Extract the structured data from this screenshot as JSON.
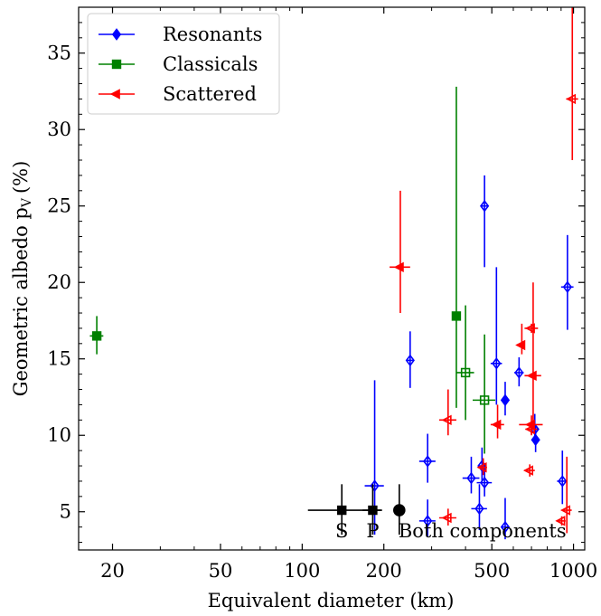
{
  "chart_data": {
    "type": "scatter",
    "xlabel": "Equivalent diameter (km)",
    "ylabel_main": "Geometric albedo p",
    "ylabel_sub": "V",
    "ylabel_unit": "(%)",
    "xscale": "log",
    "xlim": [
      15,
      1100
    ],
    "ylim": [
      2.5,
      38
    ],
    "x_ticks": [
      {
        "value": 20,
        "label": "20"
      },
      {
        "value": 50,
        "label": "50"
      },
      {
        "value": 100,
        "label": "100"
      },
      {
        "value": 200,
        "label": "200"
      },
      {
        "value": 500,
        "label": "500"
      },
      {
        "value": 1000,
        "label": "1000"
      }
    ],
    "y_ticks": [
      {
        "value": 5,
        "label": "5"
      },
      {
        "value": 10,
        "label": "10"
      },
      {
        "value": 15,
        "label": "15"
      },
      {
        "value": 20,
        "label": "20"
      },
      {
        "value": 25,
        "label": "25"
      },
      {
        "value": 30,
        "label": "30"
      },
      {
        "value": 35,
        "label": "35"
      }
    ],
    "legend": {
      "position": "top-left",
      "entries": [
        "Resonants",
        "Classicals",
        "Scattered"
      ]
    },
    "series": [
      {
        "name": "Resonants",
        "color": "#0000ff",
        "marker": "diamond",
        "points": [
          {
            "x": 250,
            "y": 14.9,
            "xerr": [
              6,
              6
            ],
            "yerr": [
              1.8,
              1.9
            ],
            "filled": false
          },
          {
            "x": 185,
            "y": 6.7,
            "xerr": [
              15,
              15
            ],
            "yerr": [
              3.2,
              6.9
            ],
            "filled": false
          },
          {
            "x": 290,
            "y": 8.3,
            "xerr": [
              20,
              20
            ],
            "yerr": [
              1.4,
              1.8
            ],
            "filled": false
          },
          {
            "x": 290,
            "y": 4.4,
            "xerr": [
              20,
              20
            ],
            "yerr": [
              1.0,
              1.4
            ],
            "filled": false
          },
          {
            "x": 420,
            "y": 7.2,
            "xerr": [
              30,
              30
            ],
            "yerr": [
              1.0,
              1.4
            ],
            "filled": false
          },
          {
            "x": 470,
            "y": 6.9,
            "xerr": [
              30,
              30
            ],
            "yerr": [
              0.9,
              1.2
            ],
            "filled": false
          },
          {
            "x": 450,
            "y": 5.2,
            "xerr": [
              30,
              30
            ],
            "yerr": [
              1.4,
              1.6
            ],
            "filled": false
          },
          {
            "x": 460,
            "y": 8.0,
            "xerr": [
              15,
              15
            ],
            "yerr": [
              1.0,
              1.2
            ],
            "filled": false
          },
          {
            "x": 470,
            "y": 25.0,
            "xerr": [
              12,
              12
            ],
            "yerr": [
              4.0,
              2.0
            ],
            "filled": false
          },
          {
            "x": 520,
            "y": 14.7,
            "xerr": [
              25,
              25
            ],
            "yerr": [
              2.7,
              6.3
            ],
            "filled": false
          },
          {
            "x": 560,
            "y": 12.3,
            "xerr": [
              15,
              15
            ],
            "yerr": [
              1.0,
              1.2
            ],
            "filled": true
          },
          {
            "x": 560,
            "y": 4.0,
            "xerr": [
              20,
              20
            ],
            "yerr": [
              0.8,
              1.9
            ],
            "filled": false
          },
          {
            "x": 630,
            "y": 14.1,
            "xerr": [
              25,
              25
            ],
            "yerr": [
              0.9,
              1.0
            ],
            "filled": false
          },
          {
            "x": 720,
            "y": 10.4,
            "xerr": [
              25,
              25
            ],
            "yerr": [
              1.0,
              1.0
            ],
            "filled": false
          },
          {
            "x": 725,
            "y": 9.7,
            "xerr": [
              15,
              15
            ],
            "yerr": [
              0.8,
              0.9
            ],
            "filled": true
          },
          {
            "x": 910,
            "y": 7.0,
            "xerr": [
              40,
              40
            ],
            "yerr": [
              1.5,
              2.0
            ],
            "filled": false
          },
          {
            "x": 950,
            "y": 19.7,
            "xerr": [
              50,
              50
            ],
            "yerr": [
              2.8,
              3.4
            ],
            "filled": false
          }
        ]
      },
      {
        "name": "Classicals",
        "color": "#008000",
        "marker": "square",
        "points": [
          {
            "x": 17.5,
            "y": 16.5,
            "xerr": [
              1.0,
              1.0
            ],
            "yerr": [
              1.2,
              1.3
            ],
            "filled": true
          },
          {
            "x": 370,
            "y": 17.8,
            "xerr": [
              12,
              12
            ],
            "yerr": [
              6.0,
              15.0
            ],
            "filled": true
          },
          {
            "x": 400,
            "y": 14.1,
            "xerr": [
              30,
              30
            ],
            "yerr": [
              3.1,
              4.4
            ],
            "filled": false
          },
          {
            "x": 470,
            "y": 12.3,
            "xerr": [
              45,
              45
            ],
            "yerr": [
              3.5,
              4.3
            ],
            "filled": false
          }
        ]
      },
      {
        "name": "Scattered",
        "color": "#ff0000",
        "marker": "triangle-left",
        "points": [
          {
            "x": 230,
            "y": 21.0,
            "xerr": [
              20,
              20
            ],
            "yerr": [
              3.0,
              5.0
            ],
            "filled": true
          },
          {
            "x": 345,
            "y": 11.0,
            "xerr": [
              25,
              25
            ],
            "yerr": [
              1.0,
              2.0
            ],
            "filled": false
          },
          {
            "x": 345,
            "y": 4.6,
            "xerr": [
              25,
              25
            ],
            "yerr": [
              0.5,
              0.6
            ],
            "filled": false
          },
          {
            "x": 465,
            "y": 7.9,
            "xerr": [
              15,
              15
            ],
            "yerr": [
              0.5,
              0.6
            ],
            "filled": false
          },
          {
            "x": 525,
            "y": 10.7,
            "xerr": [
              30,
              30
            ],
            "yerr": [
              0.9,
              1.3
            ],
            "filled": true
          },
          {
            "x": 645,
            "y": 15.9,
            "xerr": [
              15,
              15
            ],
            "yerr": [
              0.6,
              1.4
            ],
            "filled": true
          },
          {
            "x": 700,
            "y": 17.0,
            "xerr": [
              40,
              40
            ],
            "yerr": [
              0.3,
              0.3
            ],
            "filled": false
          },
          {
            "x": 710,
            "y": 13.9,
            "xerr": [
              50,
              50
            ],
            "yerr": [
              3.3,
              6.1
            ],
            "filled": true
          },
          {
            "x": 700,
            "y": 10.7,
            "xerr": [
              70,
              70
            ],
            "yerr": [
              0.6,
              0.6
            ],
            "filled": true
          },
          {
            "x": 700,
            "y": 10.4,
            "xerr": [
              35,
              35
            ],
            "yerr": [
              0.4,
              0.4
            ],
            "filled": false
          },
          {
            "x": 690,
            "y": 7.7,
            "xerr": [
              30,
              30
            ],
            "yerr": [
              0.4,
              0.4
            ],
            "filled": false
          },
          {
            "x": 905,
            "y": 4.4,
            "xerr": [
              30,
              30
            ],
            "yerr": [
              0.3,
              0.3
            ],
            "filled": false
          },
          {
            "x": 945,
            "y": 5.1,
            "xerr": [
              40,
              40
            ],
            "yerr": [
              1.5,
              3.5
            ],
            "filled": false
          },
          {
            "x": 990,
            "y": 32.0,
            "xerr": [
              50,
              50
            ],
            "yerr": [
              4.0,
              6.5
            ],
            "filled": false
          }
        ]
      },
      {
        "name": "",
        "color": "#000000",
        "points": [
          {
            "x": 140,
            "y": 5.1,
            "xerr": [
              35,
              55
            ],
            "yerr": [
              1.6,
              1.7
            ],
            "filled": true,
            "marker": "square",
            "label": "S"
          },
          {
            "x": 182,
            "y": 5.1,
            "xerr": [
              15,
              15
            ],
            "yerr": [
              1.6,
              1.7
            ],
            "filled": true,
            "marker": "square",
            "label": "P"
          },
          {
            "x": 228,
            "y": 5.1,
            "xerr": [
              10,
              10
            ],
            "yerr": [
              1.6,
              1.7
            ],
            "filled": true,
            "marker": "circle",
            "label": "Both components"
          }
        ]
      }
    ]
  }
}
